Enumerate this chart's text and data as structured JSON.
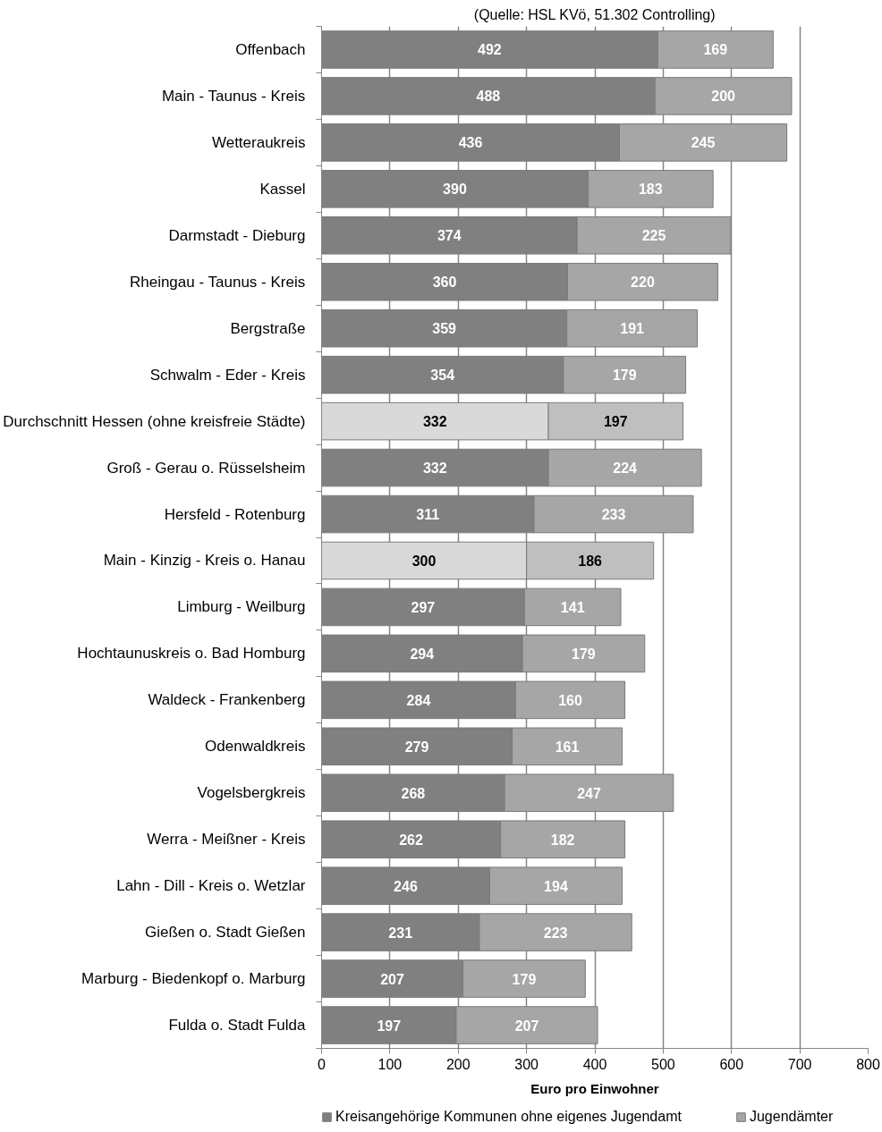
{
  "chart_data": {
    "type": "bar",
    "orientation": "horizontal",
    "stacked": true,
    "annotations": [
      "(Quelle: HSL KVö, 51.302 Controlling)"
    ],
    "categories": [
      "Offenbach",
      "Main - Taunus - Kreis",
      "Wetteraukreis",
      "Kassel",
      "Darmstadt - Dieburg",
      "Rheingau - Taunus - Kreis",
      "Bergstraße",
      "Schwalm - Eder - Kreis",
      "Durchschnitt Hessen (ohne kreisfreie Städte)",
      "Groß - Gerau o. Rüsselsheim",
      "Hersfeld - Rotenburg",
      "Main - Kinzig - Kreis o. Hanau",
      "Limburg - Weilburg",
      "Hochtaunuskreis o. Bad Homburg",
      "Waldeck - Frankenberg",
      "Odenwaldkreis",
      "Vogelsbergkreis",
      "Werra - Meißner - Kreis",
      "Lahn - Dill - Kreis o. Wetzlar",
      "Gießen o. Stadt Gießen",
      "Marburg - Biedenkopf o. Marburg",
      "Fulda o. Stadt Fulda"
    ],
    "series": [
      {
        "name": "Kreisangehörige Kommunen ohne eigenes Jugendamt",
        "color": "#808080",
        "colors": [
          "#808080",
          "#808080",
          "#808080",
          "#808080",
          "#808080",
          "#808080",
          "#808080",
          "#808080",
          "#d9d9d9",
          "#808080",
          "#808080",
          "#d9d9d9",
          "#808080",
          "#808080",
          "#808080",
          "#808080",
          "#808080",
          "#808080",
          "#808080",
          "#808080",
          "#808080",
          "#808080"
        ],
        "values": [
          492,
          488,
          436,
          390,
          374,
          360,
          359,
          354,
          332,
          332,
          311,
          300,
          297,
          294,
          284,
          279,
          268,
          262,
          246,
          231,
          207,
          197
        ]
      },
      {
        "name": "Jugendämter",
        "color": "#a6a6a6",
        "colors": [
          "#a6a6a6",
          "#a6a6a6",
          "#a6a6a6",
          "#a6a6a6",
          "#a6a6a6",
          "#a6a6a6",
          "#a6a6a6",
          "#a6a6a6",
          "#bfbfbf",
          "#a6a6a6",
          "#a6a6a6",
          "#bfbfbf",
          "#a6a6a6",
          "#a6a6a6",
          "#a6a6a6",
          "#a6a6a6",
          "#a6a6a6",
          "#a6a6a6",
          "#a6a6a6",
          "#a6a6a6",
          "#a6a6a6",
          "#a6a6a6"
        ],
        "values": [
          169,
          200,
          245,
          183,
          225,
          220,
          191,
          179,
          197,
          224,
          233,
          186,
          141,
          179,
          160,
          161,
          247,
          182,
          194,
          223,
          179,
          207
        ]
      }
    ],
    "xlabel": "Euro pro Einwohner",
    "xlim": [
      0,
      800
    ],
    "xticks": [
      0,
      100,
      200,
      300,
      400,
      500,
      600,
      700,
      800
    ],
    "grid": "x",
    "legend": "bottom",
    "data_labels": true
  }
}
